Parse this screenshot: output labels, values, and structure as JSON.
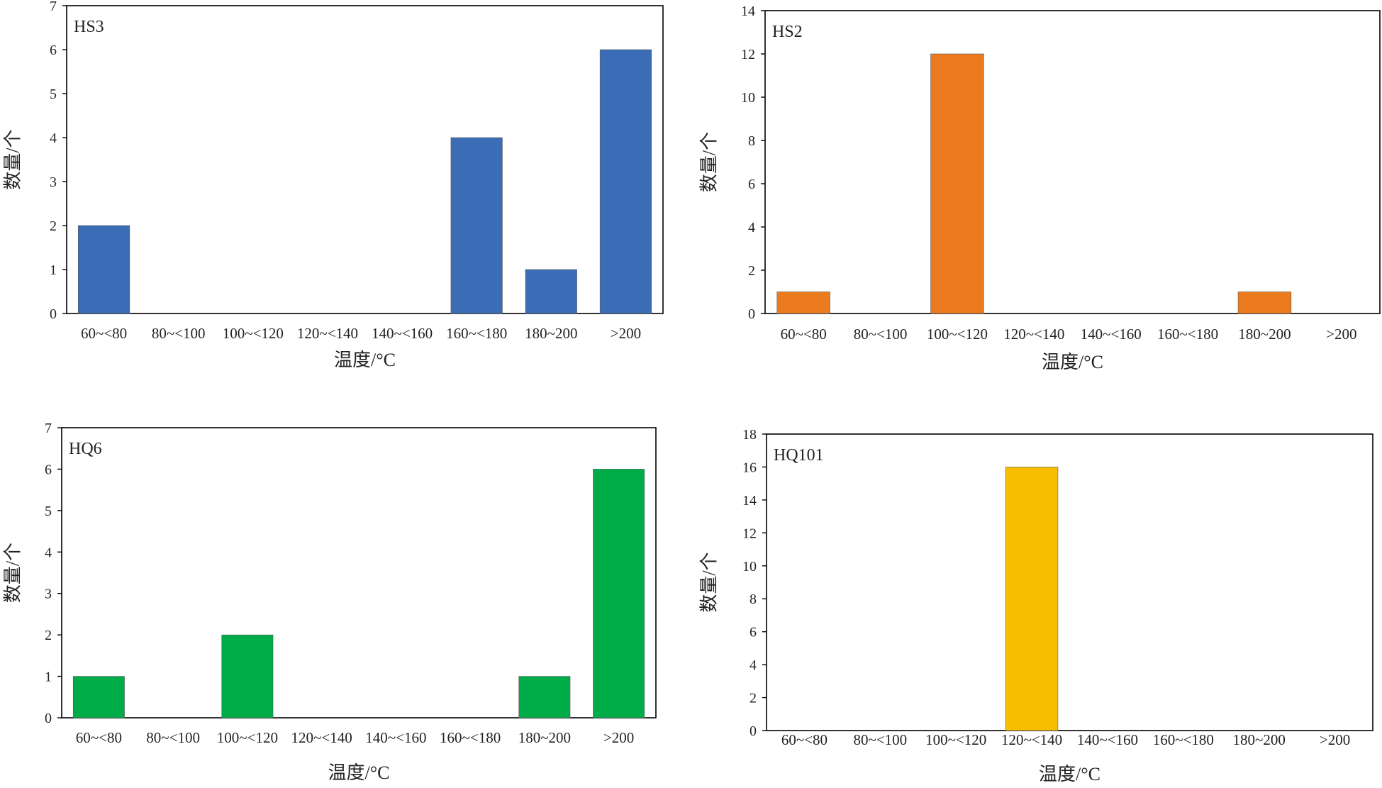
{
  "chart_data": [
    {
      "type": "bar",
      "title": "HS3",
      "xlabel": "温度/°C",
      "ylabel": "数量/个",
      "categories": [
        "60~<80",
        "80~<100",
        "100~<120",
        "120~<140",
        "140~<160",
        "160~<180",
        "180~200",
        ">200"
      ],
      "values": [
        2,
        0,
        0,
        0,
        0,
        4,
        1,
        6
      ],
      "ylim": [
        0,
        7
      ],
      "yticks": [
        0,
        1,
        2,
        3,
        4,
        5,
        6,
        7
      ],
      "grid": false,
      "color": "#3A6DB5"
    },
    {
      "type": "bar",
      "title": "HS2",
      "xlabel": "温度/°C",
      "ylabel": "数量/个",
      "categories": [
        "60~<80",
        "80~<100",
        "100~<120",
        "120~<140",
        "140~<160",
        "160~<180",
        "180~200",
        ">200"
      ],
      "values": [
        1,
        0,
        12,
        0,
        0,
        0,
        1,
        0
      ],
      "ylim": [
        0,
        14
      ],
      "yticks": [
        0,
        2,
        4,
        6,
        8,
        10,
        12,
        14
      ],
      "grid": false,
      "color": "#EC7B1F"
    },
    {
      "type": "bar",
      "title": "HQ6",
      "xlabel": "温度/°C",
      "ylabel": "数量/个",
      "categories": [
        "60~<80",
        "80~<100",
        "100~<120",
        "120~<140",
        "140~<160",
        "160~<180",
        "180~200",
        ">200"
      ],
      "values": [
        1,
        0,
        2,
        0,
        0,
        0,
        1,
        6
      ],
      "ylim": [
        0,
        7
      ],
      "yticks": [
        0,
        1,
        2,
        3,
        4,
        5,
        6,
        7
      ],
      "grid": false,
      "color": "#00AC48"
    },
    {
      "type": "bar",
      "title": "HQ101",
      "xlabel": "温度/°C",
      "ylabel": "数量/个",
      "categories": [
        "60~<80",
        "80~<100",
        "100~<120",
        "120~<140",
        "140~<160",
        "160~<180",
        "180~200",
        ">200"
      ],
      "values": [
        0,
        0,
        0,
        16,
        0,
        0,
        0,
        0
      ],
      "ylim": [
        0,
        18
      ],
      "yticks": [
        0,
        2,
        4,
        6,
        8,
        10,
        12,
        14,
        16,
        18
      ],
      "grid": false,
      "color": "#F7BE00"
    }
  ]
}
